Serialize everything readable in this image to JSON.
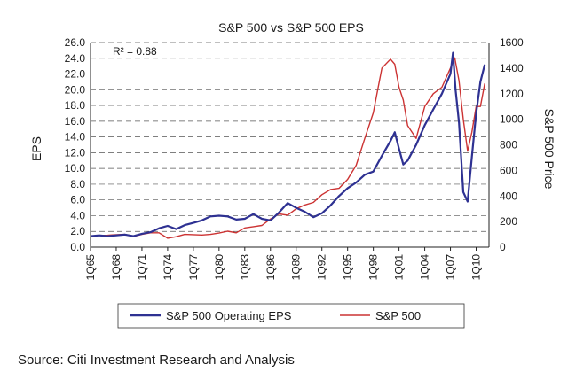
{
  "chart_data": {
    "type": "line",
    "title": "S&P 500 vs S&P 500 EPS",
    "annotation": "R² = 0.88",
    "ylabel_left": "EPS",
    "ylabel_right": "S&P 500 Price",
    "xlim": [
      1965,
      2011.5
    ],
    "ylim_left": [
      0,
      26
    ],
    "ylim_right": [
      0,
      1600
    ],
    "left_ticks": [
      "0.0",
      "2.0",
      "4.0",
      "6.0",
      "8.0",
      "10.0",
      "12.0",
      "14.0",
      "16.0",
      "18.0",
      "20.0",
      "22.0",
      "24.0",
      "26.0"
    ],
    "right_ticks": [
      "0",
      "200",
      "400",
      "600",
      "800",
      "1000",
      "1200",
      "1400",
      "1600"
    ],
    "x_ticks": [
      "1Q65",
      "1Q68",
      "1Q71",
      "1Q74",
      "1Q77",
      "1Q80",
      "1Q83",
      "1Q86",
      "1Q89",
      "1Q92",
      "1Q95",
      "1Q98",
      "1Q01",
      "1Q04",
      "1Q07",
      "1Q10"
    ],
    "grid": "horizontal dashed",
    "legend_position": "bottom",
    "series": [
      {
        "name": "S&P 500 Operating EPS",
        "axis": "left",
        "color": "#2e3192",
        "x": [
          1965,
          1966,
          1967,
          1968,
          1969,
          1970,
          1971,
          1972,
          1973,
          1974,
          1975,
          1976,
          1977,
          1978,
          1979,
          1980,
          1981,
          1982,
          1983,
          1984,
          1985,
          1986,
          1987,
          1988,
          1989,
          1990,
          1991,
          1992,
          1993,
          1994,
          1995,
          1996,
          1997,
          1998,
          1999,
          2000,
          2000.5,
          2001,
          2001.5,
          2002,
          2003,
          2004,
          2005,
          2006,
          2007,
          2007.3,
          2007.6,
          2008,
          2008.5,
          2009,
          2009.5,
          2010,
          2010.5,
          2011
        ],
        "y": [
          1.4,
          1.5,
          1.4,
          1.5,
          1.6,
          1.4,
          1.7,
          1.9,
          2.4,
          2.7,
          2.3,
          2.8,
          3.1,
          3.4,
          3.9,
          4.0,
          3.9,
          3.5,
          3.6,
          4.2,
          3.6,
          3.4,
          4.4,
          5.6,
          5.0,
          4.5,
          3.8,
          4.3,
          5.3,
          6.5,
          7.5,
          8.2,
          9.2,
          9.6,
          11.6,
          13.5,
          14.6,
          12.5,
          10.5,
          11.0,
          13.0,
          15.5,
          17.5,
          19.5,
          22.0,
          24.7,
          20.0,
          15.8,
          7.0,
          5.8,
          11.5,
          17.0,
          21.0,
          23.2
        ]
      },
      {
        "name": "S&P 500",
        "axis": "right",
        "color": "#cc3333",
        "x": [
          1965,
          1966,
          1967,
          1968,
          1969,
          1970,
          1971,
          1972,
          1973,
          1974,
          1975,
          1976,
          1977,
          1978,
          1979,
          1980,
          1981,
          1982,
          1983,
          1984,
          1985,
          1986,
          1987,
          1988,
          1989,
          1990,
          1991,
          1992,
          1993,
          1994,
          1995,
          1996,
          1997,
          1998,
          1999,
          2000,
          2000.5,
          2001,
          2001.5,
          2002,
          2003,
          2004,
          2005,
          2006,
          2007,
          2007.5,
          2008,
          2008.5,
          2009,
          2009.5,
          2010,
          2010.5,
          2011
        ],
        "y": [
          86,
          92,
          93,
          98,
          100,
          83,
          100,
          112,
          112,
          70,
          82,
          100,
          98,
          95,
          100,
          110,
          125,
          112,
          150,
          160,
          170,
          220,
          260,
          250,
          300,
          330,
          350,
          410,
          450,
          460,
          530,
          640,
          850,
          1050,
          1400,
          1470,
          1430,
          1250,
          1150,
          950,
          850,
          1100,
          1200,
          1250,
          1400,
          1480,
          1300,
          1000,
          750,
          900,
          1100,
          1100,
          1280
        ]
      }
    ]
  },
  "source": "Source: Citi Investment Research and Analysis"
}
